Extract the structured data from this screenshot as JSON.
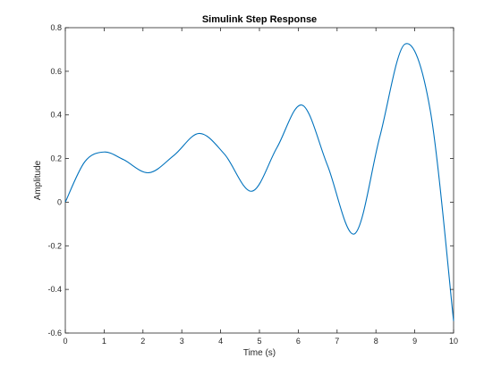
{
  "chart_data": {
    "type": "line",
    "title": "Simulink Step Response",
    "xlabel": "Time (s)",
    "ylabel": "Amplitude",
    "xlim": [
      0,
      10
    ],
    "ylim": [
      -0.6,
      0.8
    ],
    "xticks": [
      0,
      1,
      2,
      3,
      4,
      5,
      6,
      7,
      8,
      9,
      10
    ],
    "xtick_labels": [
      "0",
      "1",
      "2",
      "3",
      "4",
      "5",
      "6",
      "7",
      "8",
      "9",
      "10"
    ],
    "yticks": [
      -0.6,
      -0.4,
      -0.2,
      0,
      0.2,
      0.4,
      0.6,
      0.8
    ],
    "ytick_labels": [
      "-0.6",
      "-0.4",
      "-0.2",
      "0",
      "0.2",
      "0.4",
      "0.6",
      "0.8"
    ],
    "grid": false,
    "line_color": "#0072bd",
    "series": [
      {
        "x": [
          0,
          0.5,
          1.0,
          1.5,
          2.15,
          2.8,
          3.45,
          4.1,
          4.8,
          5.45,
          6.1,
          6.75,
          7.45,
          8.1,
          8.75,
          9.4,
          10.0
        ],
        "y": [
          0,
          0.185,
          0.23,
          0.195,
          0.135,
          0.215,
          0.315,
          0.22,
          0.05,
          0.25,
          0.445,
          0.17,
          -0.145,
          0.3,
          0.725,
          0.42,
          -0.545
        ]
      }
    ]
  }
}
